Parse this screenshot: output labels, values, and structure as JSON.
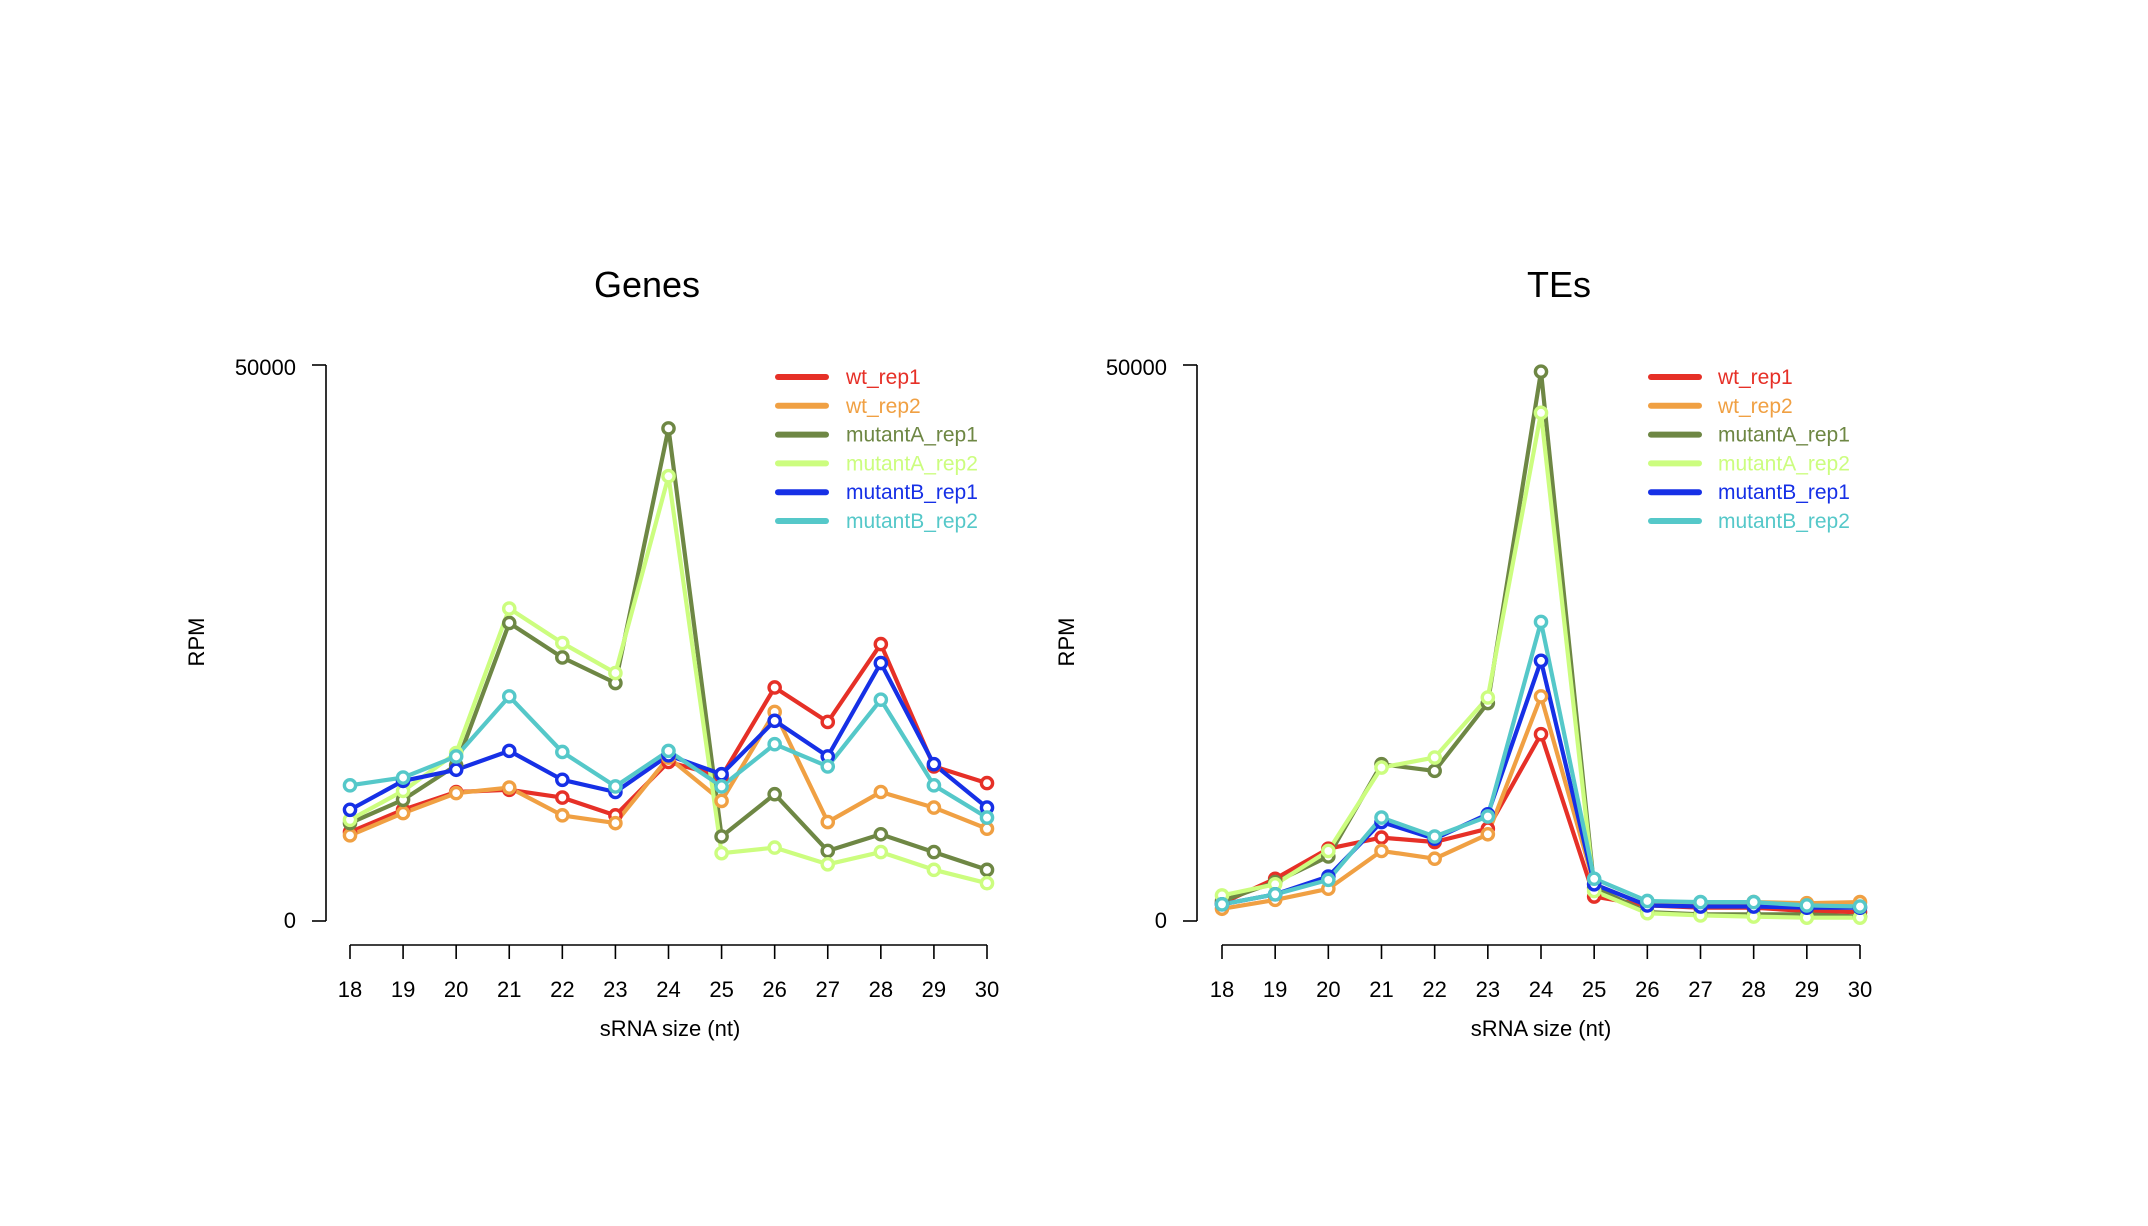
{
  "series_colors": {
    "wt_rep1": "#e63027",
    "wt_rep2": "#f0a043",
    "mutantA_rep1": "#6e8744",
    "mutantA_rep2": "#ccfd7f",
    "mutantB_rep1": "#1630e6",
    "mutantB_rep2": "#55c8c9"
  },
  "chart_data": [
    {
      "type": "line",
      "title": "Genes",
      "xlabel": "sRNA size (nt)",
      "ylabel": "RPM",
      "xlim": [
        18,
        30
      ],
      "ylim": [
        0,
        50000
      ],
      "y_ticks": [
        "0",
        "50000"
      ],
      "legend_position": "top-right",
      "x": [
        "18",
        "19",
        "20",
        "21",
        "22",
        "23",
        "24",
        "25",
        "26",
        "27",
        "28",
        "29",
        "30"
      ],
      "series": [
        {
          "name": "wt_rep1",
          "color": "#e63027",
          "values": [
            8000,
            10000,
            11600,
            11800,
            11100,
            9500,
            14300,
            13000,
            21000,
            17900,
            24900,
            13900,
            12400
          ]
        },
        {
          "name": "wt_rep2",
          "color": "#f0a043",
          "values": [
            7700,
            9700,
            11500,
            12000,
            9500,
            8800,
            14700,
            10800,
            18800,
            8900,
            11600,
            10200,
            8300
          ]
        },
        {
          "name": "mutantA_rep1",
          "color": "#6e8744",
          "values": [
            8800,
            10900,
            14000,
            26800,
            23700,
            21400,
            44300,
            7600,
            11400,
            6300,
            7800,
            6200,
            4600
          ]
        },
        {
          "name": "mutantA_rep2",
          "color": "#ccfd7f",
          "values": [
            9100,
            11700,
            15100,
            28100,
            25000,
            22300,
            40000,
            6100,
            6600,
            5100,
            6200,
            4600,
            3400
          ]
        },
        {
          "name": "mutantB_rep1",
          "color": "#1630e6",
          "values": [
            10000,
            12600,
            13600,
            15300,
            12700,
            11600,
            14900,
            13200,
            18000,
            14800,
            23200,
            14100,
            10200
          ]
        },
        {
          "name": "mutantB_rep2",
          "color": "#55c8c9",
          "values": [
            12200,
            12900,
            14800,
            20200,
            15200,
            12100,
            15300,
            12100,
            15900,
            13900,
            19900,
            12200,
            9300
          ]
        }
      ]
    },
    {
      "type": "line",
      "title": "TEs",
      "xlabel": "sRNA size (nt)",
      "ylabel": "RPM",
      "xlim": [
        18,
        30
      ],
      "ylim": [
        0,
        50000
      ],
      "y_ticks": [
        "0",
        "50000"
      ],
      "legend_position": "top-right",
      "x": [
        "18",
        "19",
        "20",
        "21",
        "22",
        "23",
        "24",
        "25",
        "26",
        "27",
        "28",
        "29",
        "30"
      ],
      "series": [
        {
          "name": "wt_rep1",
          "color": "#e63027",
          "values": [
            1600,
            3800,
            6500,
            7500,
            7100,
            8300,
            16800,
            2200,
            1400,
            1200,
            1200,
            900,
            800
          ]
        },
        {
          "name": "wt_rep2",
          "color": "#f0a043",
          "values": [
            1100,
            1900,
            2900,
            6300,
            5600,
            7800,
            20200,
            3300,
            1400,
            1500,
            1700,
            1600,
            1700
          ]
        },
        {
          "name": "mutantA_rep1",
          "color": "#6e8744",
          "values": [
            1800,
            3500,
            5800,
            14100,
            13500,
            19600,
            49400,
            3000,
            800,
            600,
            600,
            600,
            400
          ]
        },
        {
          "name": "mutantA_rep2",
          "color": "#ccfd7f",
          "values": [
            2300,
            3300,
            6300,
            13800,
            14700,
            20100,
            45700,
            2700,
            700,
            500,
            400,
            300,
            300
          ]
        },
        {
          "name": "mutantB_rep1",
          "color": "#1630e6",
          "values": [
            1500,
            2400,
            4000,
            8900,
            7400,
            9600,
            23400,
            3300,
            1400,
            1300,
            1300,
            1200,
            1200
          ]
        },
        {
          "name": "mutantB_rep2",
          "color": "#55c8c9",
          "values": [
            1500,
            2400,
            3700,
            9300,
            7600,
            9400,
            26900,
            3800,
            1800,
            1700,
            1700,
            1400,
            1300
          ]
        }
      ]
    }
  ]
}
